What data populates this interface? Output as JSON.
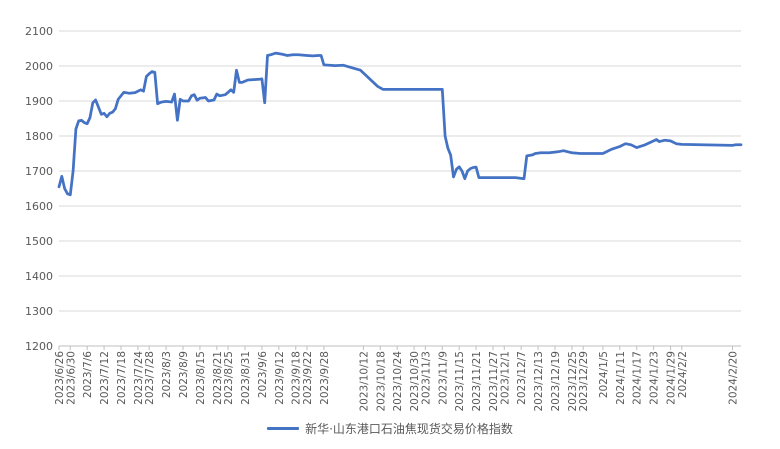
{
  "chart_data": {
    "type": "line",
    "title": "",
    "xlabel": "",
    "ylabel": "",
    "ylim": [
      1200,
      2100
    ],
    "yticks": [
      1200,
      1300,
      1400,
      1500,
      1600,
      1700,
      1800,
      1900,
      2000,
      2100
    ],
    "grid": "horizontal",
    "legend_position": "bottom",
    "colors": {
      "line": "#4472C4",
      "grid": "#D9D9D9",
      "axis": "#BFBFBF",
      "text": "#595959"
    },
    "x_start": "2023/6/26",
    "x_end": "2024/2/23",
    "categories": [
      "2023/6/26",
      "2023/6/30",
      "2023/7/6",
      "2023/7/12",
      "2023/7/18",
      "2023/7/24",
      "2023/7/28",
      "2023/8/3",
      "2023/8/9",
      "2023/8/15",
      "2023/8/21",
      "2023/8/25",
      "2023/8/31",
      "2023/9/6",
      "2023/9/12",
      "2023/9/18",
      "2023/9/22",
      "2023/9/28",
      "2023/10/12",
      "2023/10/18",
      "2023/10/24",
      "2023/10/30",
      "2023/11/3",
      "2023/11/9",
      "2023/11/15",
      "2023/11/21",
      "2023/11/27",
      "2023/12/1",
      "2023/12/7",
      "2023/12/13",
      "2023/12/19",
      "2023/12/25",
      "2023/12/29",
      "2024/1/5",
      "2024/1/11",
      "2024/1/17",
      "2024/1/23",
      "2024/1/29",
      "2024/2/2",
      "2024/2/20"
    ],
    "series": [
      {
        "name": "新华·山东港口石油焦现货交易价格指数",
        "points": [
          [
            "2023/6/26",
            1655
          ],
          [
            "2023/6/27",
            1685
          ],
          [
            "2023/6/28",
            1650
          ],
          [
            "2023/6/29",
            1635
          ],
          [
            "2023/6/30",
            1632
          ],
          [
            "2023/7/1",
            1700
          ],
          [
            "2023/7/2",
            1820
          ],
          [
            "2023/7/3",
            1843
          ],
          [
            "2023/7/4",
            1845
          ],
          [
            "2023/7/5",
            1838
          ],
          [
            "2023/7/6",
            1835
          ],
          [
            "2023/7/7",
            1853
          ],
          [
            "2023/7/8",
            1895
          ],
          [
            "2023/7/9",
            1903
          ],
          [
            "2023/7/10",
            1882
          ],
          [
            "2023/7/11",
            1862
          ],
          [
            "2023/7/12",
            1865
          ],
          [
            "2023/7/13",
            1855
          ],
          [
            "2023/7/14",
            1865
          ],
          [
            "2023/7/15",
            1868
          ],
          [
            "2023/7/16",
            1878
          ],
          [
            "2023/7/17",
            1905
          ],
          [
            "2023/7/18",
            1915
          ],
          [
            "2023/7/19",
            1925
          ],
          [
            "2023/7/21",
            1922
          ],
          [
            "2023/7/23",
            1924
          ],
          [
            "2023/7/25",
            1932
          ],
          [
            "2023/7/26",
            1928
          ],
          [
            "2023/7/27",
            1970
          ],
          [
            "2023/7/28",
            1978
          ],
          [
            "2023/7/29",
            1984
          ],
          [
            "2023/7/30",
            1982
          ],
          [
            "2023/7/31",
            1892
          ],
          [
            "2023/8/1",
            1896
          ],
          [
            "2023/8/2",
            1898
          ],
          [
            "2023/8/3",
            1899
          ],
          [
            "2023/8/5",
            1897
          ],
          [
            "2023/8/6",
            1920
          ],
          [
            "2023/8/7",
            1845
          ],
          [
            "2023/8/8",
            1905
          ],
          [
            "2023/8/9",
            1900
          ],
          [
            "2023/8/11",
            1900
          ],
          [
            "2023/8/12",
            1915
          ],
          [
            "2023/8/13",
            1918
          ],
          [
            "2023/8/14",
            1902
          ],
          [
            "2023/8/15",
            1908
          ],
          [
            "2023/8/17",
            1910
          ],
          [
            "2023/8/18",
            1900
          ],
          [
            "2023/8/20",
            1903
          ],
          [
            "2023/8/21",
            1920
          ],
          [
            "2023/8/22",
            1915
          ],
          [
            "2023/8/24",
            1918
          ],
          [
            "2023/8/25",
            1925
          ],
          [
            "2023/8/26",
            1932
          ],
          [
            "2023/8/27",
            1925
          ],
          [
            "2023/8/28",
            1988
          ],
          [
            "2023/8/29",
            1953
          ],
          [
            "2023/8/30",
            1953
          ],
          [
            "2023/9/1",
            1960
          ],
          [
            "2023/9/5",
            1962
          ],
          [
            "2023/9/6",
            1963
          ],
          [
            "2023/9/7",
            1895
          ],
          [
            "2023/9/8",
            2030
          ],
          [
            "2023/9/9",
            2032
          ],
          [
            "2023/9/11",
            2037
          ],
          [
            "2023/9/13",
            2034
          ],
          [
            "2023/9/15",
            2030
          ],
          [
            "2023/9/17",
            2032
          ],
          [
            "2023/9/19",
            2032
          ],
          [
            "2023/9/22",
            2030
          ],
          [
            "2023/9/24",
            2029
          ],
          [
            "2023/9/26",
            2030
          ],
          [
            "2023/9/27",
            2030
          ],
          [
            "2023/9/28",
            2003
          ],
          [
            "2023/10/2",
            2001
          ],
          [
            "2023/10/5",
            2002
          ],
          [
            "2023/10/8",
            1995
          ],
          [
            "2023/10/11",
            1988
          ],
          [
            "2023/10/14",
            1965
          ],
          [
            "2023/10/17",
            1942
          ],
          [
            "2023/10/19",
            1933
          ],
          [
            "2023/10/24",
            1933
          ],
          [
            "2023/11/3",
            1933
          ],
          [
            "2023/11/9",
            1933
          ],
          [
            "2023/11/10",
            1800
          ],
          [
            "2023/11/11",
            1765
          ],
          [
            "2023/11/12",
            1745
          ],
          [
            "2023/11/13",
            1683
          ],
          [
            "2023/11/14",
            1705
          ],
          [
            "2023/11/15",
            1712
          ],
          [
            "2023/11/16",
            1700
          ],
          [
            "2023/11/17",
            1678
          ],
          [
            "2023/11/18",
            1700
          ],
          [
            "2023/11/19",
            1707
          ],
          [
            "2023/11/20",
            1710
          ],
          [
            "2023/11/21",
            1711
          ],
          [
            "2023/11/22",
            1681
          ],
          [
            "2023/11/23",
            1681
          ],
          [
            "2023/12/5",
            1681
          ],
          [
            "2023/12/8",
            1678
          ],
          [
            "2023/12/9",
            1743
          ],
          [
            "2023/12/11",
            1746
          ],
          [
            "2023/12/12",
            1750
          ],
          [
            "2023/12/14",
            1752
          ],
          [
            "2023/12/17",
            1752
          ],
          [
            "2023/12/20",
            1755
          ],
          [
            "2023/12/22",
            1758
          ],
          [
            "2023/12/25",
            1752
          ],
          [
            "2023/12/28",
            1750
          ],
          [
            "2024/1/5",
            1750
          ],
          [
            "2024/1/6",
            1754
          ],
          [
            "2024/1/8",
            1762
          ],
          [
            "2024/1/11",
            1770
          ],
          [
            "2024/1/13",
            1778
          ],
          [
            "2024/1/15",
            1775
          ],
          [
            "2024/1/17",
            1767
          ],
          [
            "2024/1/20",
            1775
          ],
          [
            "2024/1/23",
            1786
          ],
          [
            "2024/1/24",
            1790
          ],
          [
            "2024/1/25",
            1784
          ],
          [
            "2024/1/27",
            1788
          ],
          [
            "2024/1/29",
            1786
          ],
          [
            "2024/1/31",
            1778
          ],
          [
            "2024/2/2",
            1776
          ],
          [
            "2024/2/20",
            1773
          ],
          [
            "2024/2/21",
            1775
          ],
          [
            "2024/2/23",
            1775
          ]
        ]
      }
    ]
  }
}
